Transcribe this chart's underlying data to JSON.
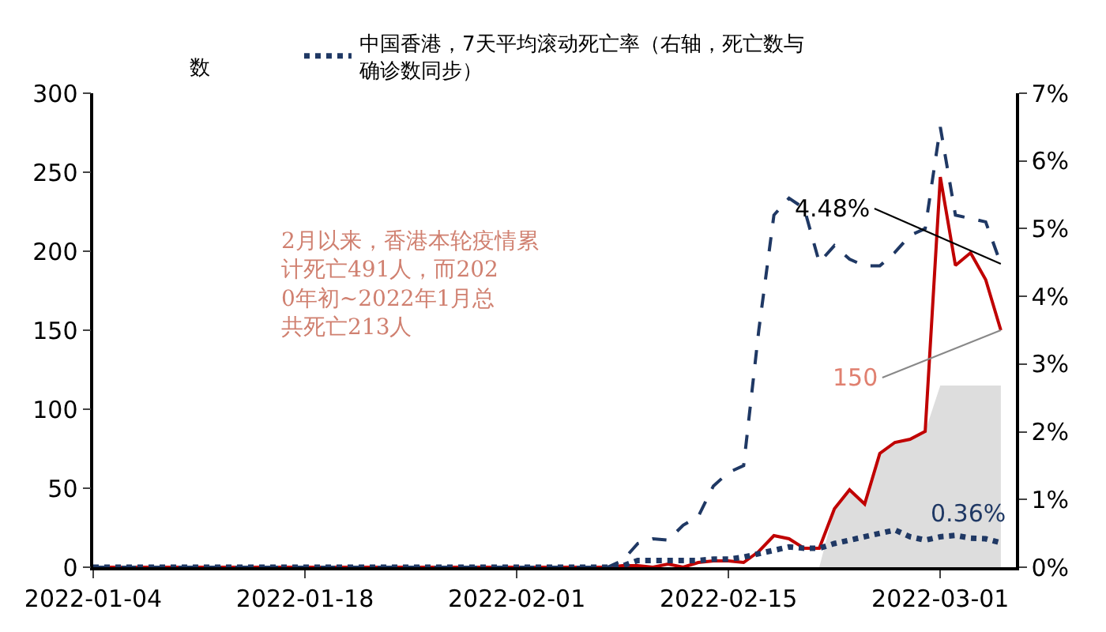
{
  "chart_data": {
    "type": "line",
    "ylabel": "数",
    "x": [
      "2022-01-04",
      "2022-01-05",
      "2022-01-06",
      "2022-01-07",
      "2022-01-08",
      "2022-01-09",
      "2022-01-10",
      "2022-01-11",
      "2022-01-12",
      "2022-01-13",
      "2022-01-14",
      "2022-01-15",
      "2022-01-16",
      "2022-01-17",
      "2022-01-18",
      "2022-01-19",
      "2022-01-20",
      "2022-01-21",
      "2022-01-22",
      "2022-01-23",
      "2022-01-24",
      "2022-01-25",
      "2022-01-26",
      "2022-01-27",
      "2022-01-28",
      "2022-01-29",
      "2022-01-30",
      "2022-01-31",
      "2022-02-01",
      "2022-02-02",
      "2022-02-03",
      "2022-02-04",
      "2022-02-05",
      "2022-02-06",
      "2022-02-07",
      "2022-02-08",
      "2022-02-09",
      "2022-02-10",
      "2022-02-11",
      "2022-02-12",
      "2022-02-13",
      "2022-02-14",
      "2022-02-15",
      "2022-02-16",
      "2022-02-17",
      "2022-02-18",
      "2022-02-19",
      "2022-02-20",
      "2022-02-21",
      "2022-02-22",
      "2022-02-23",
      "2022-02-24",
      "2022-02-25",
      "2022-02-26",
      "2022-02-27",
      "2022-02-28",
      "2022-03-01",
      "2022-03-02",
      "2022-03-03",
      "2022-03-04",
      "2022-03-05"
    ],
    "series": [
      {
        "type": "area",
        "color": "#dddddd",
        "values": [
          null,
          null,
          null,
          null,
          null,
          null,
          null,
          null,
          null,
          null,
          null,
          null,
          null,
          null,
          null,
          null,
          null,
          null,
          null,
          null,
          null,
          null,
          null,
          null,
          null,
          null,
          null,
          null,
          null,
          null,
          null,
          null,
          null,
          null,
          null,
          null,
          null,
          null,
          null,
          null,
          null,
          null,
          null,
          null,
          null,
          null,
          null,
          null,
          0,
          37,
          49,
          40,
          72,
          79,
          81,
          86,
          115,
          115,
          115,
          115,
          115
        ]
      },
      {
        "color": "#c00000",
        "line_style": "solid",
        "values": [
          0,
          0,
          0,
          0,
          0,
          0,
          0,
          0,
          0,
          0,
          0,
          0,
          0,
          0,
          0,
          0,
          0,
          0,
          0,
          0,
          0,
          0,
          0,
          0,
          0,
          0,
          0,
          0,
          0,
          0,
          0,
          0,
          0,
          0,
          0,
          1,
          1,
          0,
          2,
          0,
          3,
          4,
          4,
          3,
          10,
          20,
          18,
          12,
          12,
          37,
          49,
          40,
          72,
          79,
          81,
          86,
          247,
          191,
          199,
          182,
          150
        ]
      },
      {
        "color": "#1f3864",
        "line_style": "dashed",
        "axis": "y2",
        "values": [
          0,
          0,
          0,
          0,
          0,
          0,
          0,
          0,
          0,
          0,
          0,
          0,
          0,
          0,
          0,
          0,
          0,
          0,
          0,
          0,
          0,
          0,
          0,
          0,
          0,
          0,
          0,
          0,
          0,
          0,
          0,
          0,
          0,
          0,
          0,
          0.1,
          0.35,
          0.42,
          0.4,
          0.62,
          0.75,
          1.2,
          1.4,
          1.5,
          3.5,
          5.2,
          5.45,
          5.3,
          4.5,
          4.75,
          4.55,
          4.45,
          4.45,
          4.65,
          4.9,
          5.0,
          6.5,
          5.2,
          5.15,
          5.1,
          4.48
        ]
      },
      {
        "name": "中国香港，7天平均滚动死亡率（右轴，死亡数与确诊数同步）",
        "color": "#1f3864",
        "line_style": "dotted",
        "axis": "y2",
        "values": [
          0,
          0,
          0,
          0,
          0,
          0,
          0,
          0,
          0,
          0,
          0,
          0,
          0,
          0,
          0,
          0,
          0,
          0,
          0,
          0,
          0,
          0,
          0,
          0,
          0,
          0,
          0,
          0,
          0,
          0,
          0,
          0,
          0,
          0,
          0,
          0.02,
          0.1,
          0.1,
          0.1,
          0.1,
          0.1,
          0.12,
          0.12,
          0.15,
          0.2,
          0.25,
          0.3,
          0.28,
          0.28,
          0.35,
          0.4,
          0.45,
          0.5,
          0.55,
          0.45,
          0.4,
          0.45,
          0.47,
          0.43,
          0.42,
          0.36
        ]
      }
    ],
    "xlim": [
      "2022-01-04",
      "2022-03-06"
    ],
    "xticks": [
      "2022-01-04",
      "2022-01-18",
      "2022-02-01",
      "2022-02-15",
      "2022-03-01"
    ],
    "ylim": [
      0,
      300
    ],
    "yticks": [
      0,
      50,
      100,
      150,
      200,
      250,
      300
    ],
    "y2lim": [
      0,
      7
    ],
    "y2ticks": [
      {
        "value": 0,
        "label": "0%"
      },
      {
        "value": 1,
        "label": "1%"
      },
      {
        "value": 2,
        "label": "2%"
      },
      {
        "value": 3,
        "label": "3%"
      },
      {
        "value": 4,
        "label": "4%"
      },
      {
        "value": 5,
        "label": "5%"
      },
      {
        "value": 6,
        "label": "6%"
      },
      {
        "value": 7,
        "label": "7%"
      }
    ],
    "annotations": [
      "2月以来，香港本轮疫情累计死亡491人，而2020年初~2022年1月总共死亡213人",
      {
        "text": "4.48%",
        "x": "2022-03-05",
        "y": 192
      },
      {
        "text": "150",
        "x": "2022-03-05",
        "y": 150
      },
      {
        "text": "0.36%",
        "x": "2022-03-05",
        "y": 0.36
      }
    ],
    "legend": "top",
    "marker": "none"
  }
}
